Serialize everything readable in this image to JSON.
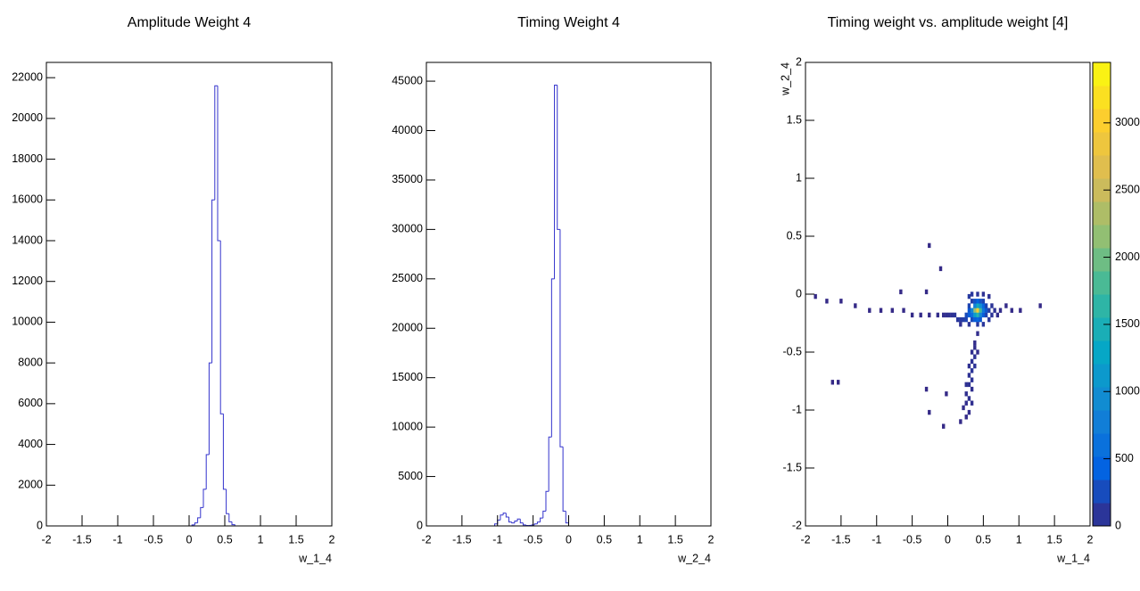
{
  "chart_data": [
    {
      "type": "histogram",
      "title": "Amplitude Weight 4",
      "x_label": "w_1_4",
      "color": "#3333cc",
      "bins": [
        0.04,
        0.08,
        0.12,
        0.16,
        0.2,
        0.24,
        0.28,
        0.32,
        0.36,
        0.4,
        0.44,
        0.48,
        0.52,
        0.56,
        0.6,
        0.64
      ],
      "counts": [
        50,
        150,
        400,
        900,
        1800,
        3500,
        8000,
        16000,
        21600,
        14000,
        5500,
        1800,
        600,
        200,
        60
      ],
      "xlim": [
        -2,
        2
      ],
      "xticks": [
        -2,
        -1.5,
        -1,
        -0.5,
        0,
        0.5,
        1,
        1.5,
        2
      ],
      "ylim": [
        0,
        22750
      ],
      "yticks": [
        0,
        2000,
        4000,
        6000,
        8000,
        10000,
        12000,
        14000,
        16000,
        18000,
        20000,
        22000
      ]
    },
    {
      "type": "histogram",
      "title": "Timing Weight 4",
      "x_label": "w_2_4",
      "color": "#3333cc",
      "bins": [
        -1.04,
        -1.0,
        -0.96,
        -0.92,
        -0.88,
        -0.84,
        -0.8,
        -0.76,
        -0.72,
        -0.68,
        -0.64,
        -0.6,
        -0.56,
        -0.52,
        -0.48,
        -0.44,
        -0.4,
        -0.36,
        -0.32,
        -0.28,
        -0.24,
        -0.2,
        -0.16,
        -0.12,
        -0.08,
        -0.04,
        0.0
      ],
      "counts": [
        200,
        600,
        1100,
        1300,
        900,
        400,
        300,
        500,
        700,
        300,
        100,
        50,
        50,
        100,
        200,
        400,
        800,
        1500,
        3500,
        9000,
        25000,
        44600,
        30000,
        8000,
        1500,
        300
      ],
      "xlim": [
        -2,
        2
      ],
      "xticks": [
        -2,
        -1.5,
        -1,
        -0.5,
        0,
        0.5,
        1,
        1.5,
        2
      ],
      "ylim": [
        0,
        46900
      ],
      "yticks": [
        0,
        5000,
        10000,
        15000,
        20000,
        25000,
        30000,
        35000,
        40000,
        45000
      ]
    },
    {
      "type": "heatmap",
      "title": "Timing weight vs. amplitude weight [4]",
      "x_label": "w_1_4",
      "y_label": "w_2_4",
      "xlim": [
        -2,
        2
      ],
      "xticks": [
        -2,
        -1.5,
        -1,
        -0.5,
        0,
        0.5,
        1,
        1.5,
        2
      ],
      "ylim": [
        -2,
        2
      ],
      "yticks": [
        -2,
        -1.5,
        -1,
        -0.5,
        0,
        0.5,
        1,
        1.5,
        2
      ],
      "zlim": [
        0,
        3450
      ],
      "zticks": [
        0,
        500,
        1000,
        1500,
        2000,
        2500,
        3000
      ],
      "colormap": [
        "#352a87",
        "#0363e1",
        "#1485d4",
        "#06a7c6",
        "#38b99e",
        "#92bf73",
        "#d9ba56",
        "#fcce2e",
        "#f9fb0e"
      ],
      "x": [
        0.42,
        0.38,
        0.46,
        0.42,
        0.42,
        0.38,
        0.46,
        0.34,
        0.5,
        0.38,
        0.46,
        0.34,
        0.5,
        0.3,
        0.54,
        0.3,
        0.42,
        0.42,
        0.38,
        0.46,
        0.34,
        0.5,
        0.38,
        0.46,
        0.54,
        0.26,
        0.26,
        0.58,
        0.5,
        0.34,
        0.54,
        0.3,
        0.22,
        0.18,
        0.14,
        0.1,
        0.06,
        0.02,
        -0.02,
        -0.06,
        0.3,
        0.34,
        0.42,
        0.5,
        0.58,
        0.62,
        0.66,
        0.62,
        0.58,
        0.5,
        0.42,
        0.3,
        0.18,
        0.7,
        0.74,
        0.82,
        0.9,
        1.02,
        -0.14,
        -0.26,
        -0.38,
        -0.5,
        -0.62,
        -0.78,
        -0.94,
        -1.1,
        -1.3,
        -1.5,
        -1.7,
        -1.86,
        -0.3,
        -0.66,
        -0.26,
        -0.1,
        -1.62,
        -1.54,
        1.3,
        0.42,
        0.38,
        0.34,
        0.38,
        0.34,
        0.3,
        0.38,
        0.34,
        0.3,
        0.34,
        0.26,
        0.3,
        0.34,
        0.26,
        0.3,
        0.34,
        0.26,
        0.22,
        0.3,
        0.26,
        0.18,
        -0.02,
        -0.3,
        -0.26,
        -0.06,
        0.38,
        0.42
      ],
      "y": [
        -0.14,
        -0.14,
        -0.14,
        -0.18,
        -0.1,
        -0.18,
        -0.1,
        -0.14,
        -0.14,
        -0.1,
        -0.18,
        -0.18,
        -0.1,
        -0.18,
        -0.14,
        -0.14,
        -0.06,
        -0.22,
        -0.22,
        -0.22,
        -0.22,
        -0.18,
        -0.06,
        -0.06,
        -0.1,
        -0.22,
        -0.18,
        -0.14,
        -0.06,
        -0.06,
        -0.18,
        -0.1,
        -0.22,
        -0.22,
        -0.22,
        -0.18,
        -0.18,
        -0.18,
        -0.18,
        -0.18,
        -0.02,
        0.0,
        0.0,
        0.0,
        -0.02,
        -0.1,
        -0.14,
        -0.18,
        -0.22,
        -0.26,
        -0.26,
        -0.26,
        -0.26,
        -0.18,
        -0.14,
        -0.1,
        -0.14,
        -0.14,
        -0.18,
        -0.18,
        -0.18,
        -0.18,
        -0.14,
        -0.14,
        -0.14,
        -0.14,
        -0.1,
        -0.06,
        -0.06,
        -0.02,
        0.02,
        0.02,
        0.42,
        0.22,
        -0.76,
        -0.76,
        -0.1,
        -0.34,
        -0.42,
        -0.5,
        -0.54,
        -0.58,
        -0.62,
        -0.62,
        -0.66,
        -0.7,
        -0.74,
        -0.78,
        -0.78,
        -0.82,
        -0.86,
        -0.9,
        -0.94,
        -0.94,
        -0.98,
        -1.02,
        -1.06,
        -1.1,
        -0.86,
        -0.82,
        -1.02,
        -1.14,
        -0.46,
        -0.5
      ],
      "values": [
        3000,
        2200,
        1800,
        1600,
        1400,
        1200,
        1000,
        900,
        700,
        800,
        900,
        600,
        500,
        400,
        350,
        350,
        450,
        500,
        400,
        350,
        250,
        400,
        300,
        300,
        200,
        200,
        250,
        150,
        200,
        150,
        200,
        200,
        150,
        120,
        100,
        80,
        60,
        50,
        40,
        30,
        120,
        100,
        80,
        60,
        60,
        80,
        60,
        80,
        100,
        100,
        120,
        80,
        50,
        30,
        20,
        10,
        5,
        3,
        20,
        10,
        8,
        5,
        3,
        2,
        2,
        1,
        1,
        1,
        1,
        1,
        1,
        1,
        1,
        1,
        1,
        1,
        1,
        30,
        20,
        40,
        60,
        60,
        50,
        70,
        80,
        60,
        70,
        50,
        60,
        40,
        40,
        50,
        40,
        30,
        20,
        20,
        10,
        5,
        2,
        1,
        1,
        1,
        30,
        20
      ]
    }
  ]
}
